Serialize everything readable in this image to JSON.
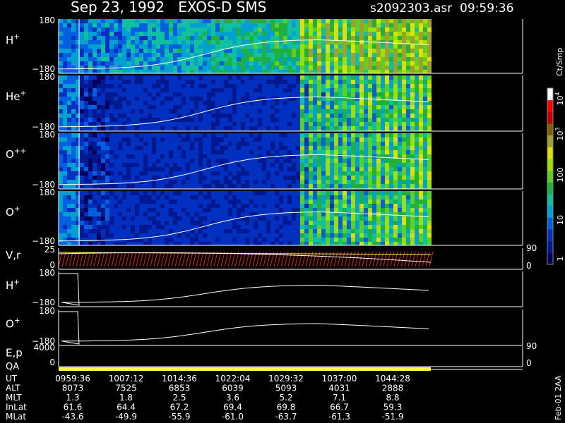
{
  "header": {
    "title": "Sep 23, 1992   EXOS-D SMS",
    "file": "s2092303.asr  09:59:36"
  },
  "panels": [
    {
      "label": {
        "base": "H",
        "sup": "+"
      },
      "ticks": [
        "180",
        "−180"
      ]
    },
    {
      "label": {
        "base": "He",
        "sup": "+"
      },
      "ticks": [
        "180",
        "−180"
      ]
    },
    {
      "label": {
        "base": "O",
        "sup": "++"
      },
      "ticks": [
        "180",
        "−180"
      ]
    },
    {
      "label": {
        "base": "O",
        "sup": "+"
      },
      "ticks": [
        "180",
        "−180"
      ]
    },
    {
      "label": {
        "base": "V,r"
      },
      "ticks": [
        "25",
        "0"
      ],
      "right_ticks": [
        "90",
        "0"
      ]
    },
    {
      "label": {
        "base": "H",
        "sup": "+"
      },
      "ticks": [
        "180",
        "−180"
      ]
    },
    {
      "label": {
        "base": "O",
        "sup": "+"
      },
      "ticks": [
        "180",
        "−180"
      ]
    },
    {
      "label": {
        "base": "E,p"
      },
      "ticks": [
        "4000",
        "0"
      ],
      "right_ticks": [
        "90",
        "0"
      ]
    },
    {
      "label": {
        "base": "QA"
      }
    }
  ],
  "colorbar": {
    "title": "Ct/Smp",
    "ticks": [
      {
        "base": "1"
      },
      {
        "base": "10"
      },
      {
        "base": "100"
      },
      {
        "base": "10",
        "sup": "3"
      },
      {
        "base": "10",
        "sup": "4"
      }
    ]
  },
  "table": {
    "rows": [
      {
        "name": "UT",
        "values": [
          "0959:36",
          "1007:12",
          "1014:36",
          "1022:04",
          "1029:32",
          "1037:00",
          "1044:28"
        ]
      },
      {
        "name": "ALT",
        "values": [
          "8073",
          "7525",
          "6853",
          "6039",
          "5093",
          "4031",
          "2888"
        ]
      },
      {
        "name": "MLT",
        "values": [
          "1.3",
          "1.8",
          "2.5",
          "3.6",
          "5.2",
          "7.1",
          "8.8"
        ]
      },
      {
        "name": "InLat",
        "values": [
          "61.6",
          "64.4",
          "67.2",
          "69.4",
          "69.8",
          "66.7",
          "59.3"
        ]
      },
      {
        "name": "MLat",
        "values": [
          "-43.6",
          "-49.9",
          "-55.9",
          "-61.0",
          "-63.7",
          "-61.3",
          "-51.9"
        ]
      }
    ]
  },
  "footer": "Feb-01 2AA"
}
